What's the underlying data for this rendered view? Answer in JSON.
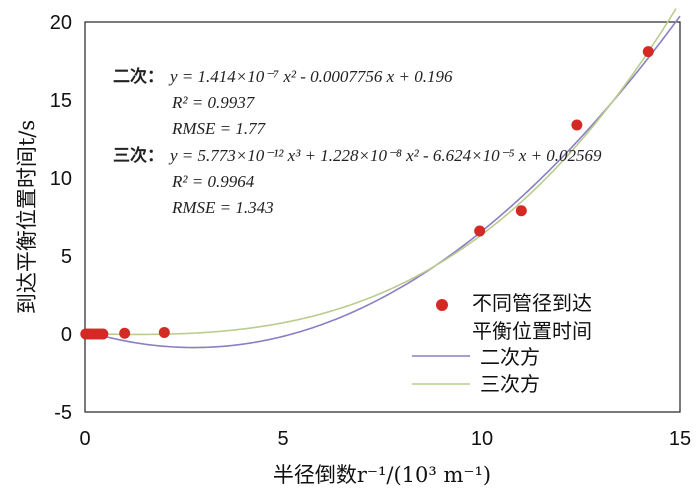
{
  "chart_data": {
    "type": "scatter",
    "xlabel": "半径倒数r⁻¹/(10³ m⁻¹)",
    "ylabel": "到达平衡位置时间t/s",
    "xlim": [
      0,
      15
    ],
    "ylim": [
      -5,
      20
    ],
    "x_ticks": [
      "0",
      "5",
      "10",
      "15"
    ],
    "y_ticks": [
      "-5",
      "0",
      "5",
      "10",
      "15",
      "20"
    ],
    "grid": false,
    "legend_position": "bottom-right",
    "series": [
      {
        "name": "不同管径到达平衡位置时间",
        "kind": "points",
        "color": "#d42a25",
        "x": [
          0.02,
          0.08,
          0.15,
          0.22,
          0.3,
          0.38,
          0.45,
          1.0,
          2.0,
          9.95,
          11.0,
          12.4,
          14.2
        ],
        "y": [
          0.0,
          0.0,
          0.0,
          0.0,
          0.0,
          0.0,
          0.0,
          0.05,
          0.1,
          6.6,
          7.9,
          13.4,
          18.1
        ]
      },
      {
        "name": "二次方",
        "kind": "fit",
        "color": "#8a7fc4",
        "coeffs": [
          0.196,
          -0.7756,
          0.1414
        ]
      },
      {
        "name": "三次方",
        "kind": "fit",
        "color": "#b9cd8e",
        "coeffs": [
          0.02569,
          -0.06624,
          0.01228,
          0.005773
        ]
      }
    ],
    "annotations": {
      "quad_label": "二次：",
      "quad_eq": "y = 1.414×10⁻⁷ x² - 0.0007756 x + 0.196",
      "quad_r2": "R² = 0.9937",
      "quad_rmse": "RMSE = 1.77",
      "cubic_label": "三次：",
      "cubic_eq": "y = 5.773×10⁻¹² x³ + 1.228×10⁻⁸ x² - 6.624×10⁻⁵ x + 0.02569",
      "cubic_r2": "R² = 0.9964",
      "cubic_rmse": "RMSE = 1.343"
    },
    "legend": {
      "points_line1": "不同管径到达",
      "points_line2": "平衡位置时间",
      "quad": "二次方",
      "cubic": "三次方"
    }
  }
}
